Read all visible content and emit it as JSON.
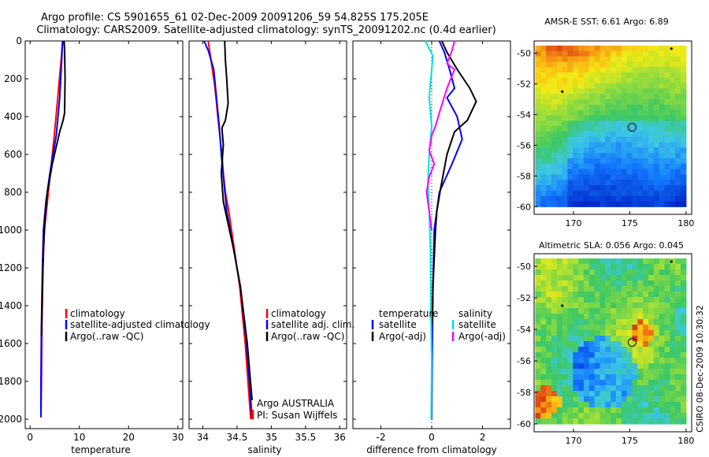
{
  "header": {
    "title_line1": "Argo profile: CS 5901655_61 02-Dec-2009 20091206_59 54.825S 175.205E",
    "title_line2": "Climatology: CARS2009. Satellite-adjusted climatology: synTS_20091202.nc (0.4d earlier)"
  },
  "chart_data": [
    {
      "type": "line",
      "id": "temperature",
      "xlabel": "temperature",
      "ylabel": "",
      "xlim": [
        -1,
        31
      ],
      "ylim": [
        2050,
        0
      ],
      "xticks": [
        0,
        10,
        20,
        30
      ],
      "yticks": [
        0,
        200,
        400,
        600,
        800,
        1000,
        1200,
        1400,
        1600,
        1800,
        2000
      ],
      "legend": [
        "climatology",
        "satellite-adjusted climatology",
        "Argo(..raw -QC)"
      ],
      "series": [
        {
          "name": "climatology",
          "color": "#ff0000",
          "x": [
            6.6,
            6.3,
            5.6,
            4.9,
            4.1,
            3.5,
            2.9,
            2.6,
            2.4,
            2.3,
            2.2
          ],
          "y": [
            0,
            100,
            300,
            500,
            700,
            850,
            1000,
            1200,
            1500,
            1800,
            1990
          ]
        },
        {
          "name": "satellite-adjusted climatology",
          "color": "#0000ff",
          "x": [
            6.6,
            6.4,
            6.0,
            5.3,
            4.0,
            3.2,
            2.7,
            2.5,
            2.3,
            2.2,
            2.2
          ],
          "y": [
            0,
            100,
            300,
            500,
            700,
            850,
            1000,
            1200,
            1500,
            1800,
            1990
          ]
        },
        {
          "name": "Argo(..raw -QC)",
          "color": "#000000",
          "x": [
            6.9,
            7.0,
            7.1,
            7.0,
            6.7,
            6.0,
            4.5,
            3.5,
            3.0,
            2.7,
            2.5,
            2.3
          ],
          "y": [
            0,
            50,
            200,
            380,
            420,
            480,
            650,
            800,
            950,
            1100,
            1300,
            1560
          ]
        }
      ]
    },
    {
      "type": "line",
      "id": "salinity",
      "xlabel": "salinity",
      "xlim": [
        33.8,
        36.1
      ],
      "ylim": [
        2050,
        0
      ],
      "xticks": [
        34,
        34.5,
        35,
        35.5,
        36
      ],
      "xtick_labels": [
        "34",
        "34.5",
        "35",
        "35.5",
        "36"
      ],
      "legend": [
        "climatology",
        "satellite adj. clim.",
        "Argo(..raw -QC)"
      ],
      "annotations": [
        "Argo AUSTRALIA",
        "PI: Susan Wijffels"
      ],
      "series": [
        {
          "name": "climatology",
          "color": "#ff0000",
          "x": [
            34.08,
            34.12,
            34.18,
            34.22,
            34.28,
            34.3,
            34.33,
            34.38,
            34.46,
            34.54,
            34.62,
            34.68,
            34.7
          ],
          "y": [
            0,
            100,
            250,
            400,
            600,
            700,
            800,
            900,
            1100,
            1300,
            1600,
            1900,
            2000
          ]
        },
        {
          "name": "satellite adj. clim.",
          "color": "#0000ff",
          "x": [
            34.02,
            34.08,
            34.16,
            34.2,
            34.24,
            34.27,
            34.31,
            34.35,
            34.45,
            34.55,
            34.64,
            34.7,
            34.72
          ],
          "y": [
            0,
            50,
            150,
            300,
            450,
            600,
            750,
            900,
            1100,
            1300,
            1600,
            1900,
            2000
          ]
        },
        {
          "name": "Argo(..raw -QC)",
          "color": "#000000",
          "x": [
            34.32,
            34.33,
            34.35,
            34.37,
            34.33,
            34.28,
            34.3,
            34.27,
            34.3,
            34.36,
            34.45,
            34.55,
            34.65,
            34.72
          ],
          "y": [
            0,
            100,
            200,
            330,
            420,
            460,
            550,
            700,
            850,
            950,
            1100,
            1300,
            1600,
            1900
          ]
        }
      ]
    },
    {
      "type": "line",
      "id": "difference",
      "xlabel": "difference from climatology",
      "xlim": [
        -3.1,
        3.1
      ],
      "ylim": [
        2050,
        0
      ],
      "xticks": [
        -2,
        0,
        2
      ],
      "legend_titles": [
        "temperature",
        "salinity"
      ],
      "legend_temperature": [
        "satellite",
        "Argo(-adj)"
      ],
      "legend_salinity": [
        "satellite",
        "Argo(-adj)"
      ],
      "series": [
        {
          "name": "temperature satellite",
          "color": "#0000ff",
          "x": [
            0.3,
            0.5,
            0.7,
            0.9,
            0.6,
            1.0,
            1.2,
            0.8,
            0.3,
            0.1,
            0.05,
            0.02,
            0.0
          ],
          "y": [
            0,
            60,
            150,
            250,
            300,
            400,
            520,
            650,
            800,
            1000,
            1300,
            1700,
            2000
          ]
        },
        {
          "name": "temperature Argo(-adj)",
          "color": "#000000",
          "x": [
            0.4,
            0.6,
            1.0,
            1.5,
            1.75,
            1.4,
            0.9,
            0.6,
            0.35,
            0.2,
            0.15,
            0.1,
            0.05,
            0.02
          ],
          "y": [
            0,
            60,
            150,
            250,
            320,
            420,
            480,
            600,
            780,
            900,
            1000,
            1150,
            1300,
            1500
          ]
        },
        {
          "name": "salinity satellite",
          "color": "#00e0e0",
          "x": [
            -0.25,
            -0.1,
            0.05,
            0.0,
            -0.1,
            0.0,
            -0.1,
            -0.15,
            -0.1,
            -0.05,
            -0.03,
            0.0,
            -0.02
          ],
          "y": [
            0,
            40,
            80,
            150,
            300,
            450,
            600,
            750,
            900,
            1100,
            1400,
            1700,
            2000
          ]
        },
        {
          "name": "salinity Argo(-adj)",
          "color": "#ff00ff",
          "x": [
            0.9,
            0.8,
            0.6,
            0.9,
            0.6,
            0.3,
            0.15,
            0.0,
            -0.1,
            0.1,
            -0.1,
            -0.2,
            -0.1,
            0.0
          ],
          "y": [
            0,
            50,
            120,
            150,
            250,
            380,
            450,
            500,
            580,
            650,
            720,
            800,
            900,
            1000
          ]
        }
      ]
    },
    {
      "type": "heatmap",
      "id": "sst_map",
      "title": "AMSR-E SST: 6.61 Argo: 6.89",
      "xlim": [
        166.5,
        180.5
      ],
      "ylim": [
        -60.5,
        -49.2
      ],
      "xticks": [
        170,
        175,
        180
      ],
      "yticks": [
        -50,
        -52,
        -54,
        -56,
        -58,
        -60
      ],
      "argo_position": [
        175.205,
        -54.825
      ],
      "point_markers": [
        [
          169.0,
          -52.5
        ],
        [
          178.7,
          -49.7
        ]
      ]
    },
    {
      "type": "heatmap",
      "id": "sla_map",
      "title": "Altimetric SLA: 0.056 Argo: 0.045",
      "xlim": [
        166.5,
        180.5
      ],
      "ylim": [
        -60.5,
        -49.2
      ],
      "xticks": [
        170,
        175,
        180
      ],
      "yticks": [
        -50,
        -52,
        -54,
        -56,
        -58,
        -60
      ],
      "argo_position": [
        175.205,
        -54.825
      ],
      "point_markers": [
        [
          169.0,
          -52.5
        ],
        [
          178.7,
          -49.7
        ]
      ]
    }
  ],
  "footer": {
    "side_text": "CSIRO 08-Dec-2009 10:30:32"
  },
  "colors": {
    "climatology": "#ff0000",
    "satellite": "#0000ff",
    "argo": "#000000",
    "salinity_satellite": "#00e0e0",
    "salinity_argo": "#ff00ff"
  }
}
